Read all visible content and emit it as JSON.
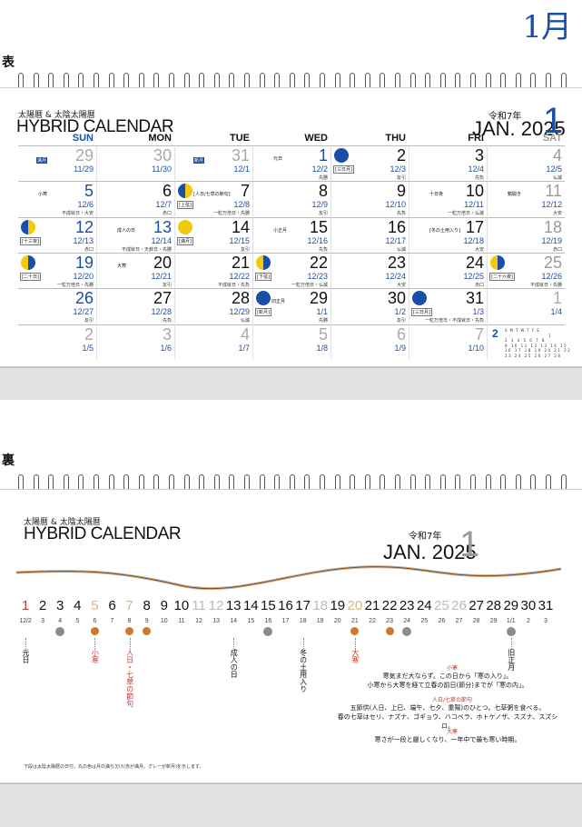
{
  "page_title": "1月",
  "front": {
    "side_label": "表",
    "brand_small": "太陽暦 & 太陰太陽暦",
    "brand_big": "HYBRID CALENDAR",
    "reiwa": "令和7年",
    "jan_year": "JAN. 2025",
    "month_num": "1",
    "dow": [
      "SUN",
      "MON",
      "TUE",
      "WED",
      "THU",
      "FRI",
      "SAT"
    ],
    "weeks": [
      [
        {
          "d": "29",
          "l": "11/29",
          "tone": "grey",
          "tag": "満月"
        },
        {
          "d": "30",
          "l": "11/30",
          "tone": "grey"
        },
        {
          "d": "31",
          "l": "12/1",
          "tone": "grey",
          "tag": "新月"
        },
        {
          "d": "1",
          "l": "12/2",
          "tone": "sun",
          "r": "先勝",
          "note": "元日"
        },
        {
          "d": "2",
          "l": "12/3",
          "tone": "black",
          "r": "友引",
          "moon": "new",
          "mlabel": "[三日月]"
        },
        {
          "d": "3",
          "l": "12/4",
          "tone": "black",
          "r": "先負"
        },
        {
          "d": "4",
          "l": "12/5",
          "tone": "sat",
          "r": "仏滅"
        }
      ],
      [
        {
          "d": "5",
          "l": "12/6",
          "tone": "sun",
          "r": "不成就日・大安",
          "note": "小寒"
        },
        {
          "d": "6",
          "l": "12/7",
          "tone": "black",
          "r": "赤口"
        },
        {
          "d": "7",
          "l": "12/8",
          "tone": "black",
          "r": "一粒万倍日・先勝",
          "moon": "half",
          "mlabel": "[上弦]",
          "note": "[人日/七草の節句]"
        },
        {
          "d": "8",
          "l": "12/9",
          "tone": "black",
          "r": "友引"
        },
        {
          "d": "9",
          "l": "12/10",
          "tone": "black",
          "r": "先負"
        },
        {
          "d": "10",
          "l": "12/11",
          "tone": "black",
          "r": "一粒万倍日・仏滅",
          "note": "十日夜"
        },
        {
          "d": "11",
          "l": "12/12",
          "tone": "sat",
          "r": "大安",
          "note": "鏡開き"
        }
      ],
      [
        {
          "d": "12",
          "l": "12/13",
          "tone": "sun",
          "r": "赤口",
          "moon": "half",
          "mlabel": "[十三夜]"
        },
        {
          "d": "13",
          "l": "12/14",
          "tone": "sun",
          "r": "不成就日・天赦日・先勝",
          "note": "成人の日"
        },
        {
          "d": "14",
          "l": "12/15",
          "tone": "black",
          "r": "友引",
          "moon": "full",
          "mlabel": "[満月]"
        },
        {
          "d": "15",
          "l": "12/16",
          "tone": "black",
          "r": "先負",
          "note": "小正月"
        },
        {
          "d": "16",
          "l": "12/17",
          "tone": "black",
          "r": "仏滅"
        },
        {
          "d": "17",
          "l": "12/18",
          "tone": "black",
          "r": "大安",
          "note": "[冬の土用入り]"
        },
        {
          "d": "18",
          "l": "12/19",
          "tone": "sat",
          "r": "赤口"
        }
      ],
      [
        {
          "d": "19",
          "l": "12/20",
          "tone": "sun",
          "r": "一粒万倍日・先勝",
          "moon": "half2",
          "mlabel": "[二十日]"
        },
        {
          "d": "20",
          "l": "12/21",
          "tone": "black",
          "r": "友引",
          "note": "大寒"
        },
        {
          "d": "21",
          "l": "12/22",
          "tone": "black",
          "r": "不成就日・先負"
        },
        {
          "d": "22",
          "l": "12/23",
          "tone": "black",
          "r": "一粒万倍日・仏滅",
          "moon": "half2",
          "mlabel": "[下弦]"
        },
        {
          "d": "23",
          "l": "12/24",
          "tone": "black",
          "r": "大安"
        },
        {
          "d": "24",
          "l": "12/25",
          "tone": "black",
          "r": "赤口"
        },
        {
          "d": "25",
          "l": "12/26",
          "tone": "sat",
          "r": "不成就日・先勝",
          "moon": "half2",
          "mlabel": "[二十六夜]"
        }
      ],
      [
        {
          "d": "26",
          "l": "12/27",
          "tone": "sun",
          "r": "友引"
        },
        {
          "d": "27",
          "l": "12/28",
          "tone": "black",
          "r": "先負"
        },
        {
          "d": "28",
          "l": "12/29",
          "tone": "black",
          "r": "仏滅"
        },
        {
          "d": "29",
          "l": "1/1",
          "tone": "black",
          "r": "先勝",
          "moon": "new",
          "mlabel": "[新月]",
          "note": "旧正月"
        },
        {
          "d": "30",
          "l": "1/2",
          "tone": "black",
          "r": "友引"
        },
        {
          "d": "31",
          "l": "1/3",
          "tone": "black",
          "r": "一粒万倍日・不成就日・先負",
          "moon": "new",
          "mlabel": "[三日月]"
        },
        {
          "d": "1",
          "l": "1/4",
          "tone": "grey"
        }
      ],
      [
        {
          "d": "2",
          "l": "1/5",
          "tone": "grey"
        },
        {
          "d": "3",
          "l": "1/6",
          "tone": "grey"
        },
        {
          "d": "4",
          "l": "1/7",
          "tone": "grey"
        },
        {
          "d": "5",
          "l": "1/8",
          "tone": "grey"
        },
        {
          "d": "6",
          "l": "1/9",
          "tone": "grey"
        },
        {
          "d": "7",
          "l": "1/10",
          "tone": "grey"
        },
        {
          "mini": true
        }
      ]
    ],
    "mini_cal": {
      "month": "2",
      "header": "SMTWTFS",
      "rows": [
        "1",
        "2 3 4 5 6 7 8",
        "9 10 11 12 13 14 15",
        "16 17 18 19 20 21 22",
        "23 24 25 26 27 28"
      ]
    }
  },
  "back": {
    "side_label": "裏",
    "brand_small": "太陽暦 & 太陰太陽暦",
    "brand_big": "HYBRID CALENDAR",
    "reiwa": "令和7年",
    "jan_year": "JAN. 2025",
    "month_num": "1",
    "days": [
      "1",
      "2",
      "3",
      "4",
      "5",
      "6",
      "7",
      "8",
      "9",
      "10",
      "11",
      "12",
      "13",
      "14",
      "15",
      "16",
      "17",
      "18",
      "19",
      "20",
      "21",
      "22",
      "23",
      "24",
      "25",
      "26",
      "27",
      "28",
      "29",
      "30",
      "31"
    ],
    "lunar": [
      "12/2",
      "3",
      "4",
      "5",
      "6",
      "7",
      "8",
      "9",
      "10",
      "11",
      "12",
      "13",
      "14",
      "15",
      "16",
      "17",
      "18",
      "19",
      "20",
      "21",
      "22",
      "23",
      "24",
      "25",
      "26",
      "27",
      "28",
      "29",
      "1/1",
      "2",
      "3"
    ],
    "vertical_labels": [
      {
        "day": 1,
        "text": "元日",
        "red": false
      },
      {
        "day": 5,
        "text": "小寒",
        "red": true
      },
      {
        "day": 7,
        "text": "人日・七草の節句",
        "red": true
      },
      {
        "day": 13,
        "text": "成人の日",
        "red": false
      },
      {
        "day": 17,
        "text": "冬の土用入り",
        "red": false
      },
      {
        "day": 20,
        "text": "大寒",
        "red": true
      },
      {
        "day": 29,
        "text": "旧正月",
        "red": false
      }
    ],
    "notes": [
      {
        "title": "小寒",
        "lines": [
          "寒気まだ大ならず。この日から「寒の入り」。",
          "小寒から大寒を経て立春の前日(節分)までが「寒の内」。"
        ]
      },
      {
        "title": "人日/七草の節句",
        "lines": [
          "五節供(人日、上巳、端午、七夕、重陽)のひとつ。七草粥を食べる。",
          "春の七草はセリ、ナズナ、ゴギョウ、ハコベラ、ホトケノザ、スズナ、スズシロ。"
        ]
      },
      {
        "title": "大寒",
        "lines": [
          "寒さが一段と厳しくなり、一年中で最も寒い時期。"
        ]
      }
    ],
    "footnote": "下段は太陰太陽暦の日付。丸の色は月の満ち欠け(赤が満月、グレーが新月)を示します。"
  }
}
